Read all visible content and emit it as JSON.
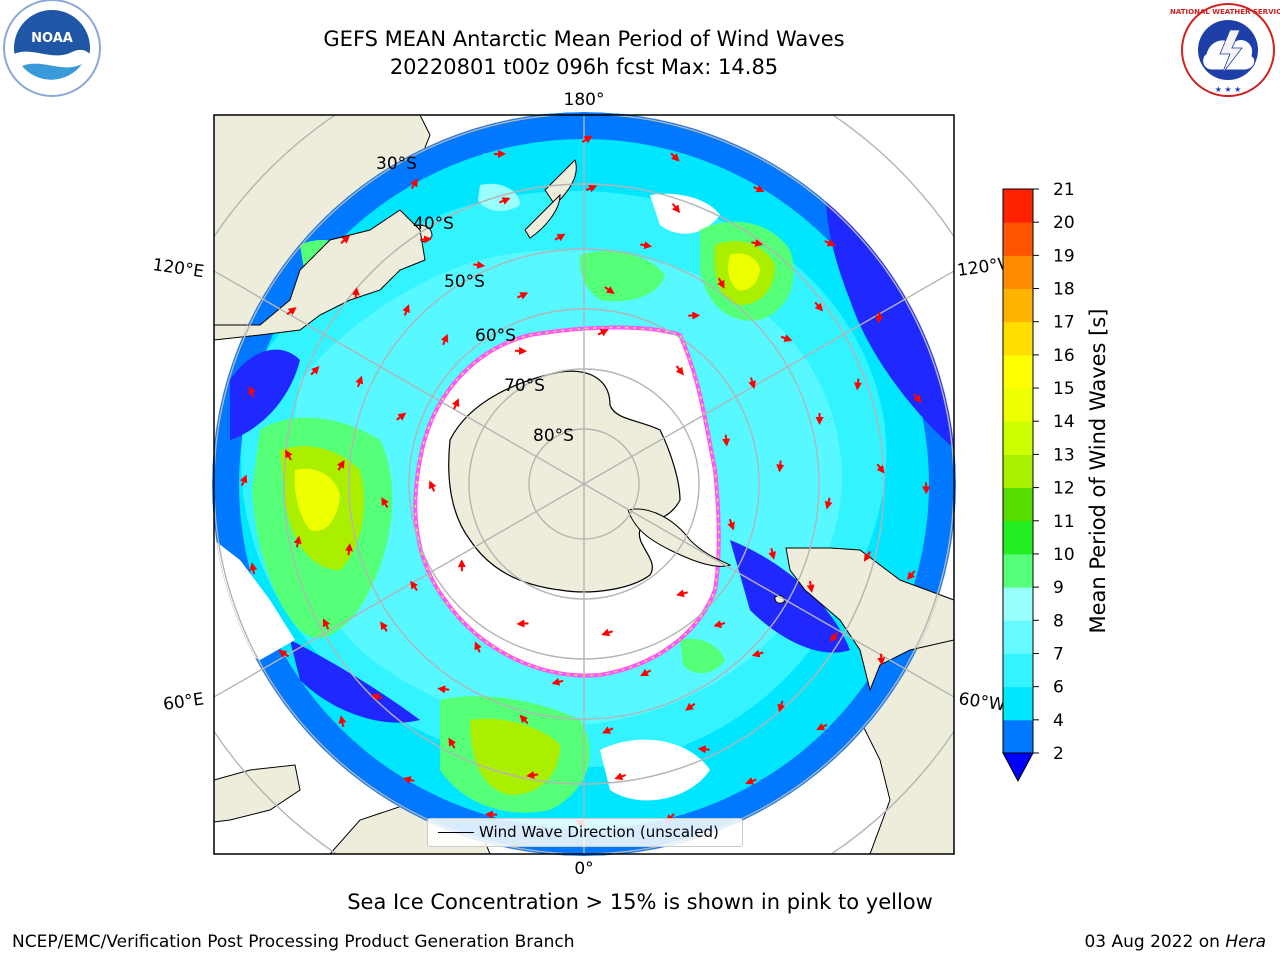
{
  "title": {
    "line1": "GEFS MEAN Antarctic Mean Period of Wind Waves",
    "line2": "20220801 t00z 096h fcst   Max: 14.85"
  },
  "logos": {
    "left": {
      "name": "noaa-logo",
      "text": "NOAA"
    },
    "right": {
      "name": "national-weather-service-logo",
      "text": "NATIONAL WEATHER SERVICE"
    }
  },
  "map": {
    "projection": "south-polar-stereographic",
    "longitude_labels": {
      "top": "180°",
      "bottom": "0°",
      "upper_left": "120°E",
      "upper_right": "120°W",
      "lower_left": "60°E",
      "lower_right": "60°W"
    },
    "latitude_labels": [
      "30°S",
      "40°S",
      "50°S",
      "60°S",
      "70°S",
      "80°S"
    ],
    "legend": {
      "label": "Wind Wave Direction (unscaled)"
    },
    "colors": {
      "land": "#eeeddc",
      "ice": "#ffffff",
      "ice_edge": [
        "#ff55ff",
        "#ffdd55"
      ],
      "arrow": "#ff0000",
      "grid": "#b4b4b4"
    }
  },
  "colorbar": {
    "label": "Mean Period of Wind Waves [s]",
    "ticks": [
      "2",
      "4",
      "6",
      "7",
      "8",
      "9",
      "10",
      "11",
      "12",
      "13",
      "14",
      "15",
      "16",
      "17",
      "18",
      "19",
      "20",
      "21"
    ],
    "levels": [
      2,
      4,
      6,
      7,
      8,
      9,
      10,
      11,
      12,
      13,
      14,
      15,
      16,
      17,
      18,
      19,
      20,
      21
    ],
    "colors": [
      "#0078ff",
      "#00e6ff",
      "#33f3ff",
      "#66f9ff",
      "#99fffa",
      "#55ff77",
      "#22ee22",
      "#55dd00",
      "#aaee00",
      "#ccff00",
      "#eeff00",
      "#ffff00",
      "#ffdd00",
      "#ffb400",
      "#ff8c00",
      "#ff5500",
      "#ff2200",
      "#ff0000"
    ],
    "extend_below_color": "#0000ff"
  },
  "subtitle": "Sea Ice Concentration > 15% is shown in pink to yellow",
  "footer": {
    "left": "NCEP/EMC/Verification Post Processing Product Generation Branch",
    "right_date": "03 Aug 2022 on ",
    "right_machine": "Hera"
  }
}
